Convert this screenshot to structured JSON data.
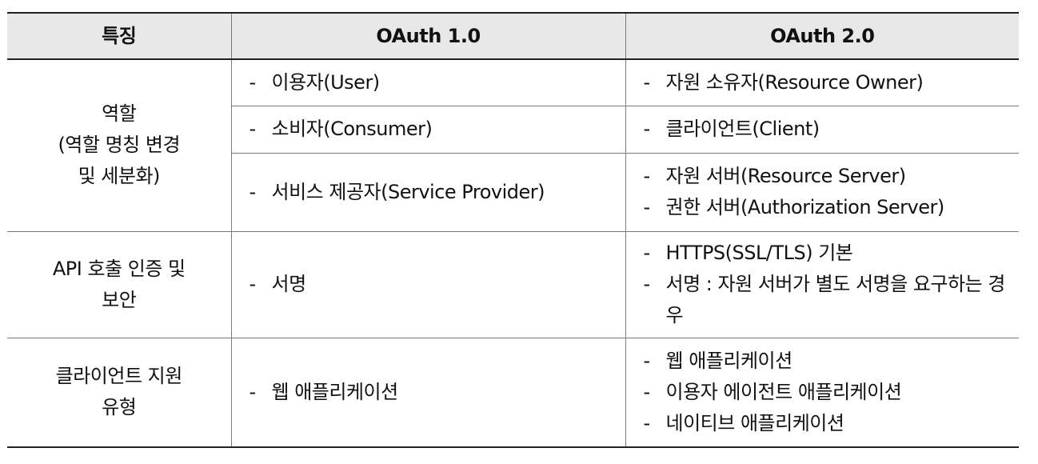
{
  "header": {
    "feature": "특징",
    "v1": "OAuth 1.0",
    "v2": "OAuth 2.0"
  },
  "dash": "-",
  "roles": {
    "feature_lines": [
      "역할",
      "(역할 명칭 변경",
      "및 세분화)"
    ],
    "v1": [
      "이용자(User)",
      "소비자(Consumer)",
      "서비스 제공자(Service Provider)"
    ],
    "v2": [
      [
        "자원 소유자(Resource Owner)"
      ],
      [
        "클라이언트(Client)"
      ],
      [
        "자원 서버(Resource Server)",
        "권한 서버(Authorization Server)"
      ]
    ]
  },
  "api_security": {
    "feature_lines": [
      "API 호출 인증 및",
      "보안"
    ],
    "v1": [
      "서명"
    ],
    "v2": [
      "HTTPS(SSL/TLS) 기본",
      "서명 : 자원 서버가 별도 서명을 요구하는 경우"
    ]
  },
  "client_types": {
    "feature_lines": [
      "클라이언트 지원",
      "유형"
    ],
    "v1": [
      "웹 애플리케이션"
    ],
    "v2": [
      "웹 애플리케이션",
      "이용자 에이전트 애플리케이션",
      "네이티브 애플리케이션"
    ]
  }
}
